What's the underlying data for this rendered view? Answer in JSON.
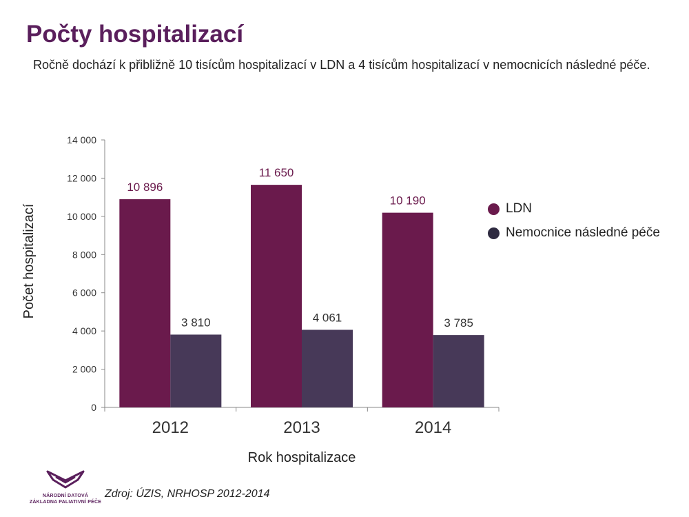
{
  "header": {
    "title": "Počty hospitalizací",
    "subtitle": "Ročně dochází k přibližně 10 tisícům hospitalizací v LDN a 4 tisícům hospitalizací v nemocnicích následné péče."
  },
  "chart_data": {
    "type": "bar",
    "categories": [
      "2012",
      "2013",
      "2014"
    ],
    "series": [
      {
        "name": "LDN",
        "values": [
          10896,
          11650,
          10190
        ],
        "labels": [
          "10 896",
          "11 650",
          "10 190"
        ],
        "color": "#6a1a4c"
      },
      {
        "name": "Nemocnice následné péče",
        "values": [
          3810,
          4061,
          3785
        ],
        "labels": [
          "3 810",
          "4 061",
          "3 785"
        ],
        "color": "#473958"
      }
    ],
    "xlabel": "Rok hospitalizace",
    "ylabel": "Počet hospitalizací",
    "ylim": [
      0,
      14000
    ],
    "yticks": [
      0,
      2000,
      4000,
      6000,
      8000,
      10000,
      12000,
      14000
    ],
    "ytick_labels": [
      "0",
      "2 000",
      "4 000",
      "6 000",
      "8 000",
      "10 000",
      "12 000",
      "14 000"
    ],
    "legend_position": "right",
    "grid": false
  },
  "footer": {
    "source": "Zdroj: ÚZIS, NRHOSP 2012-2014",
    "logo_line1": "NÁRODNÍ DATOVÁ",
    "logo_line2": "ZÁKLADNA PALIATIVNÍ PÉČE",
    "logo_color": "#5a1f5c"
  }
}
